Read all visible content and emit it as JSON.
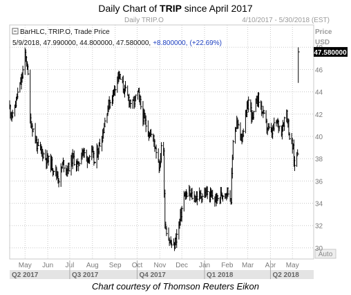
{
  "title": {
    "prefix": "Daily Chart of ",
    "symbol": "TRIP",
    "suffix": " since April 2017"
  },
  "header": {
    "chart_name": "Daily TRIP.O",
    "date_range": "4/10/2017 - 5/30/2018 (EST)"
  },
  "legend": {
    "series_line": "BarHLC, TRIP.O, Trade Price",
    "values_text": "5/9/2018, 47.990000, 44.800000, 47.580000,",
    "change_text": "+8.800000,",
    "change_pct_text": "(+22.69%)"
  },
  "axis": {
    "unit_title": "Price",
    "unit_sub": "USD",
    "auto_label": "Auto",
    "last_price_label": "47.580000"
  },
  "caption": "Chart courtesy of Thomson Reuters Eikon",
  "colors": {
    "background": "#ffffff",
    "bars": "#000000",
    "grid": "#c8c8c8",
    "change": "#1a3dbf",
    "header": "#9a9a9a",
    "axis_text": "#7a7a7a",
    "quarter_band": "#e4e4e4"
  },
  "chart_data": {
    "type": "ohlc-bar",
    "x_range": [
      "2017-04-10",
      "2018-05-30"
    ],
    "ylim": [
      29,
      50
    ],
    "y_ticks": [
      30,
      32,
      34,
      36,
      38,
      40,
      42,
      44,
      46,
      48
    ],
    "month_labels": [
      {
        "label": "May",
        "date": "2017-05-01"
      },
      {
        "label": "Jun",
        "date": "2017-06-01"
      },
      {
        "label": "Jul",
        "date": "2017-07-01"
      },
      {
        "label": "Aug",
        "date": "2017-08-01"
      },
      {
        "label": "Sep",
        "date": "2017-09-01"
      },
      {
        "label": "Oct",
        "date": "2017-10-01"
      },
      {
        "label": "Nov",
        "date": "2017-11-01"
      },
      {
        "label": "Dec",
        "date": "2017-12-01"
      },
      {
        "label": "Jan",
        "date": "2018-01-01"
      },
      {
        "label": "Feb",
        "date": "2018-02-01"
      },
      {
        "label": "Mar",
        "date": "2018-03-01"
      },
      {
        "label": "Apr",
        "date": "2018-04-01"
      },
      {
        "label": "May",
        "date": "2018-05-01"
      }
    ],
    "quarter_labels": [
      {
        "label": "Q2 2017",
        "start": "2017-04-10",
        "end": "2017-06-30"
      },
      {
        "label": "Q3 2017",
        "start": "2017-07-01",
        "end": "2017-09-30"
      },
      {
        "label": "Q4 2017",
        "start": "2017-10-01",
        "end": "2017-12-31"
      },
      {
        "label": "Q1 2018",
        "start": "2018-01-01",
        "end": "2018-03-31"
      },
      {
        "label": "Q2 2018",
        "start": "2018-04-01",
        "end": "2018-05-30"
      }
    ],
    "last_price": 47.58,
    "price_path": [
      [
        "2017-04-10",
        42.6
      ],
      [
        "2017-04-14",
        41.7
      ],
      [
        "2017-04-20",
        43.6
      ],
      [
        "2017-04-26",
        45.0
      ],
      [
        "2017-05-01",
        47.2
      ],
      [
        "2017-05-04",
        46.5
      ],
      [
        "2017-05-08",
        41.5
      ],
      [
        "2017-05-12",
        40.6
      ],
      [
        "2017-05-18",
        39.0
      ],
      [
        "2017-05-24",
        38.6
      ],
      [
        "2017-05-30",
        38.0
      ],
      [
        "2017-06-06",
        37.5
      ],
      [
        "2017-06-12",
        36.8
      ],
      [
        "2017-06-16",
        36.2
      ],
      [
        "2017-06-22",
        37.6
      ],
      [
        "2017-06-28",
        37.0
      ],
      [
        "2017-07-05",
        38.1
      ],
      [
        "2017-07-12",
        37.3
      ],
      [
        "2017-07-18",
        38.8
      ],
      [
        "2017-07-24",
        38.0
      ],
      [
        "2017-07-31",
        38.5
      ],
      [
        "2017-08-04",
        37.6
      ],
      [
        "2017-08-09",
        38.9
      ],
      [
        "2017-08-15",
        40.3
      ],
      [
        "2017-08-21",
        42.5
      ],
      [
        "2017-08-28",
        43.6
      ],
      [
        "2017-09-05",
        45.6
      ],
      [
        "2017-09-11",
        44.6
      ],
      [
        "2017-09-18",
        43.5
      ],
      [
        "2017-09-25",
        42.8
      ],
      [
        "2017-10-02",
        43.9
      ],
      [
        "2017-10-09",
        41.8
      ],
      [
        "2017-10-16",
        40.5
      ],
      [
        "2017-10-23",
        39.8
      ],
      [
        "2017-10-27",
        38.8
      ],
      [
        "2017-11-01",
        37.2
      ],
      [
        "2017-11-03",
        39.3
      ],
      [
        "2017-11-06",
        38.4
      ],
      [
        "2017-11-08",
        32.2
      ],
      [
        "2017-11-14",
        30.6
      ],
      [
        "2017-11-20",
        30.0
      ],
      [
        "2017-11-27",
        32.0
      ],
      [
        "2017-12-04",
        34.6
      ],
      [
        "2017-12-11",
        34.8
      ],
      [
        "2017-12-18",
        34.5
      ],
      [
        "2017-12-27",
        34.7
      ],
      [
        "2018-01-04",
        34.9
      ],
      [
        "2018-01-11",
        34.5
      ],
      [
        "2018-01-18",
        34.3
      ],
      [
        "2018-01-25",
        34.9
      ],
      [
        "2018-02-01",
        35.1
      ],
      [
        "2018-02-06",
        34.5
      ],
      [
        "2018-02-09",
        39.8
      ],
      [
        "2018-02-14",
        41.2
      ],
      [
        "2018-02-20",
        39.9
      ],
      [
        "2018-02-26",
        41.5
      ],
      [
        "2018-03-02",
        43.2
      ],
      [
        "2018-03-08",
        41.5
      ],
      [
        "2018-03-14",
        43.6
      ],
      [
        "2018-03-20",
        42.4
      ],
      [
        "2018-03-26",
        41.0
      ],
      [
        "2018-04-02",
        40.2
      ],
      [
        "2018-04-09",
        41.3
      ],
      [
        "2018-04-16",
        40.6
      ],
      [
        "2018-04-23",
        42.3
      ],
      [
        "2018-04-27",
        40.0
      ],
      [
        "2018-05-02",
        38.8
      ],
      [
        "2018-05-04",
        37.3
      ],
      [
        "2018-05-07",
        38.6
      ],
      [
        "2018-05-08",
        38.78
      ],
      [
        "2018-05-09",
        47.58
      ]
    ]
  }
}
